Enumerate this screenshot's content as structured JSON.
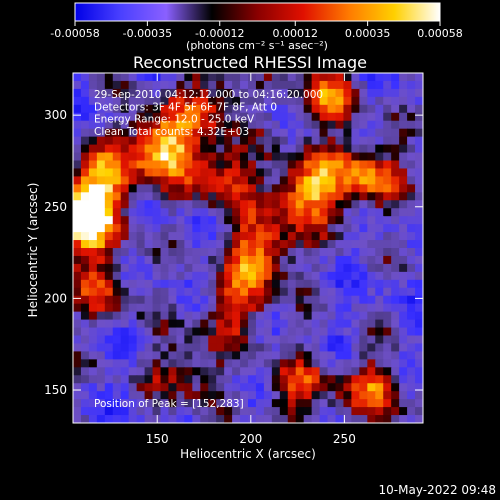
{
  "chart_data": {
    "type": "heatmap",
    "title": "Reconstructed RHESSI Image",
    "xlabel": "Heliocentric X (arcsec)",
    "ylabel": "Heliocentric Y (arcsec)",
    "xlim": [
      105,
      292
    ],
    "ylim": [
      132,
      323
    ],
    "x_ticks": [
      150,
      200,
      250
    ],
    "y_ticks": [
      150,
      200,
      250,
      300
    ],
    "colorbar": {
      "ticks": [
        "-0.00058",
        "-0.00035",
        "-0.00012",
        "0.00012",
        "0.00035",
        "0.00058"
      ],
      "range": [
        -0.00058,
        0.00058
      ],
      "unit_label": "(photons cm⁻² s⁻¹ asec⁻²)",
      "colors": [
        "#0000e6",
        "#4a40ff",
        "#8a60ff",
        "#000000",
        "#8a0000",
        "#e01000",
        "#ff7a00",
        "#ffd000",
        "#ffffff"
      ]
    },
    "annotations": [
      "29-Sep-2010 04:12:12.000 to 04:16:20.000",
      "Detectors: 3F 4F 5F 6F 7F 8F, Att 0",
      "Energy Range: 12.0 - 25.0 keV",
      "Clean     Total counts: 4.32E+03"
    ],
    "peak_label": "Position of Peak = [152,283]",
    "peak": {
      "x": 152,
      "y": 283
    },
    "bright_sources": [
      {
        "x": 152,
        "y": 283,
        "level": 1.0
      },
      {
        "x": 110,
        "y": 240,
        "level": 0.95
      },
      {
        "x": 118,
        "y": 262,
        "level": 0.8
      },
      {
        "x": 230,
        "y": 258,
        "level": 0.85
      },
      {
        "x": 205,
        "y": 225,
        "level": 0.75
      },
      {
        "x": 262,
        "y": 268,
        "level": 0.7
      },
      {
        "x": 185,
        "y": 268,
        "level": 0.6
      },
      {
        "x": 192,
        "y": 195,
        "level": 0.55
      },
      {
        "x": 240,
        "y": 310,
        "level": 0.6
      },
      {
        "x": 120,
        "y": 205,
        "level": 0.45
      },
      {
        "x": 225,
        "y": 150,
        "level": 0.5
      },
      {
        "x": 265,
        "y": 150,
        "level": 0.55
      },
      {
        "x": 180,
        "y": 310,
        "level": 0.5
      },
      {
        "x": 165,
        "y": 160,
        "level": 0.45
      }
    ]
  },
  "footer": {
    "timestamp": "10-May-2022 09:48"
  }
}
